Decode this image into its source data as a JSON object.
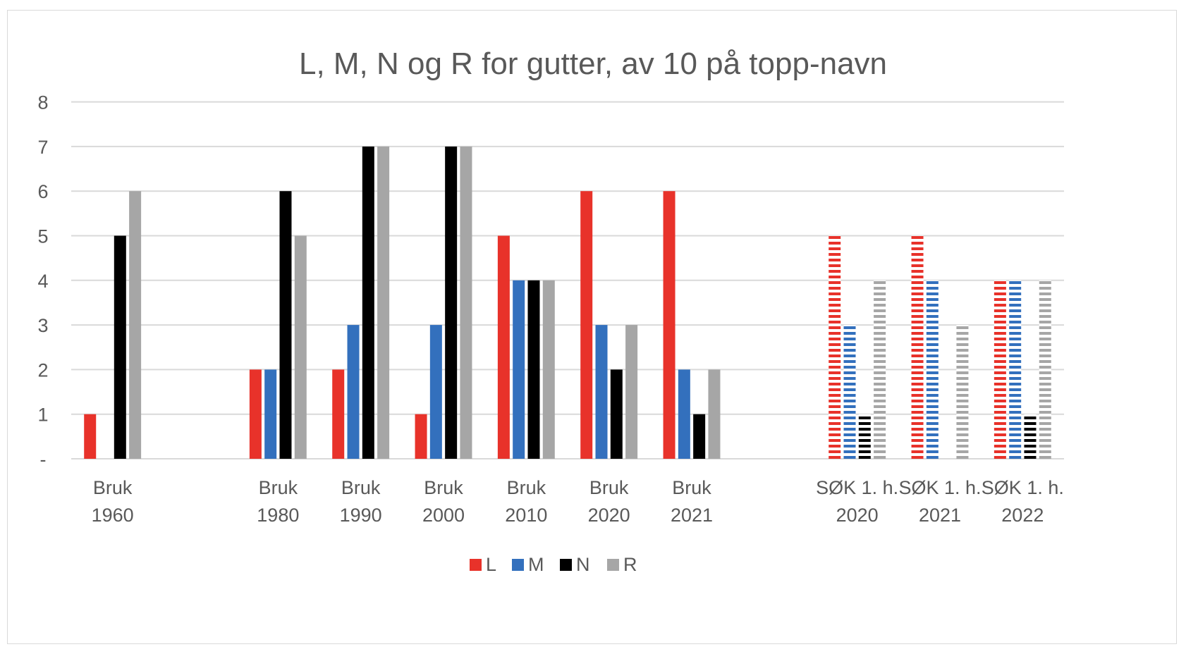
{
  "chart_data": {
    "type": "bar",
    "title": "L, M, N og R for gutter, av 10 på topp-navn",
    "xlabel": "",
    "ylabel": "",
    "ylim": [
      0,
      8
    ],
    "yticks": [
      "-",
      "1",
      "2",
      "3",
      "4",
      "5",
      "6",
      "7",
      "8"
    ],
    "grid": true,
    "legend_position": "bottom",
    "categories": [
      [
        "Bruk",
        "1960"
      ],
      [
        "",
        ""
      ],
      [
        "Bruk",
        "1980"
      ],
      [
        "Bruk",
        "1990"
      ],
      [
        "Bruk",
        "2000"
      ],
      [
        "Bruk",
        "2010"
      ],
      [
        "Bruk",
        "2020"
      ],
      [
        "Bruk",
        "2021"
      ],
      [
        "",
        ""
      ],
      [
        "SØK 1. h.",
        "2020"
      ],
      [
        "SØK 1. h.",
        "2021"
      ],
      [
        "SØK 1. h.",
        "2022"
      ]
    ],
    "hatched_categories": [
      9,
      10,
      11
    ],
    "series": [
      {
        "name": "L",
        "color": "#e8322a",
        "values": [
          1,
          0,
          2,
          2,
          1,
          5,
          6,
          6,
          0,
          5,
          5,
          4
        ]
      },
      {
        "name": "M",
        "color": "#3370bd",
        "values": [
          0,
          0,
          2,
          3,
          3,
          4,
          3,
          2,
          0,
          3,
          4,
          4
        ]
      },
      {
        "name": "N",
        "color": "#000000",
        "values": [
          5,
          0,
          6,
          7,
          7,
          4,
          2,
          1,
          0,
          1,
          0,
          1
        ]
      },
      {
        "name": "R",
        "color": "#a6a6a6",
        "values": [
          6,
          0,
          5,
          7,
          7,
          4,
          3,
          2,
          0,
          4,
          3,
          4
        ]
      }
    ]
  }
}
